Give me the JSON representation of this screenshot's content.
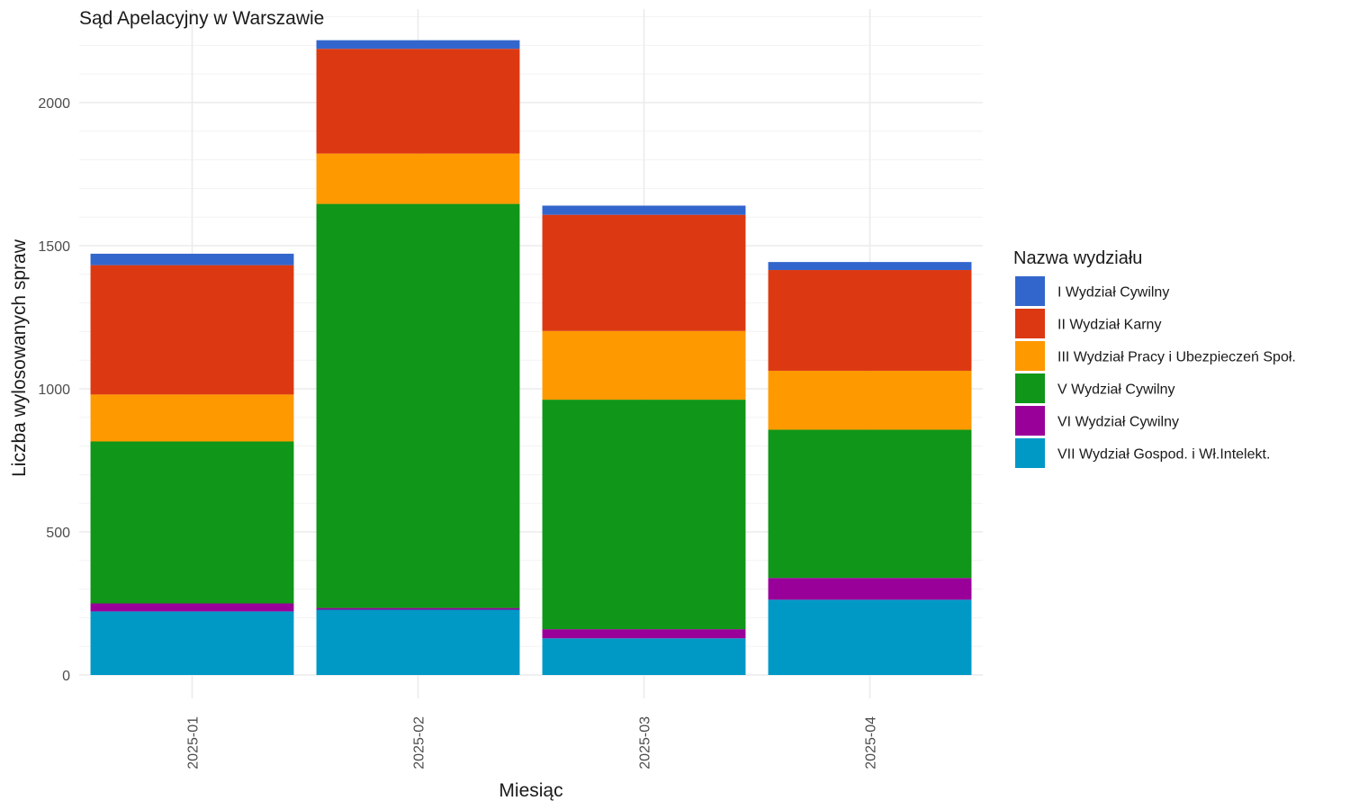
{
  "chart_data": {
    "type": "bar",
    "stacked": true,
    "title": "Sąd Apelacyjny w Warszawie",
    "xlabel": "Miesiąc",
    "ylabel": "Liczba wylosowanych spraw",
    "categories": [
      "2025-01",
      "2025-02",
      "2025-03",
      "2025-04"
    ],
    "ylim": [
      0,
      2200
    ],
    "y_ticks": [
      0,
      500,
      1000,
      1500,
      2000
    ],
    "grid": true,
    "legend": {
      "title": "Nazwa wydziału",
      "placement": "right"
    },
    "series": [
      {
        "name": "VII Wydział Gospod. i Wł.Intelekt.",
        "color": "#0099C6",
        "values": [
          222,
          228,
          128,
          263
        ]
      },
      {
        "name": "VI Wydział Cywilny",
        "color": "#990099",
        "values": [
          28,
          6,
          32,
          76
        ]
      },
      {
        "name": "V Wydział Cywilny",
        "color": "#109618",
        "values": [
          566,
          1412,
          802,
          518
        ]
      },
      {
        "name": "III Wydział Pracy i Ubezpieczeń Społ.",
        "color": "#FF9900",
        "values": [
          164,
          176,
          240,
          206
        ]
      },
      {
        "name": "II Wydział Karny",
        "color": "#DC3912",
        "values": [
          452,
          366,
          406,
          352
        ]
      },
      {
        "name": "I Wydział Cywilny",
        "color": "#3366CC",
        "values": [
          40,
          30,
          32,
          28
        ]
      }
    ],
    "legend_order": [
      "I Wydział Cywilny",
      "II Wydział Karny",
      "III Wydział Pracy i Ubezpieczeń Społ.",
      "V Wydział Cywilny",
      "VI Wydział Cywilny",
      "VII Wydział Gospod. i Wł.Intelekt."
    ]
  }
}
